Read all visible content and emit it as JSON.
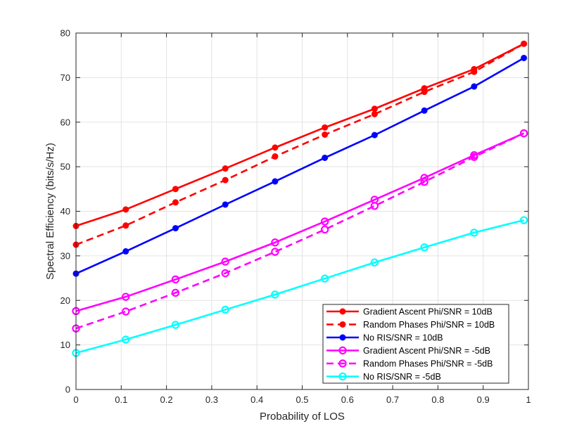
{
  "chart_data": {
    "type": "line",
    "title": "",
    "xlabel": "Probability of LOS",
    "ylabel": "Spectral Efficiency (bits/s/Hz)",
    "xlim": [
      0,
      1
    ],
    "ylim": [
      0,
      80
    ],
    "xticks": [
      "0",
      "0.1",
      "0.2",
      "0.3",
      "0.4",
      "0.5",
      "0.6",
      "0.7",
      "0.8",
      "0.9",
      "1"
    ],
    "yticks": [
      "0",
      "10",
      "20",
      "30",
      "40",
      "50",
      "60",
      "70",
      "80"
    ],
    "grid": true,
    "legend_position": "bottom-right",
    "x": [
      0,
      0.11,
      0.22,
      0.33,
      0.44,
      0.55,
      0.66,
      0.77,
      0.88,
      0.99
    ],
    "series": [
      {
        "name": "Gradient Ascent Phi/SNR = 10dB",
        "color": "#ff0000",
        "dash": false,
        "marker": "filled",
        "values": [
          36.7,
          40.4,
          45.0,
          49.6,
          54.3,
          58.8,
          63.0,
          67.6,
          71.9,
          77.6
        ]
      },
      {
        "name": "Random Phases Phi/SNR = 10dB",
        "color": "#ff0000",
        "dash": true,
        "marker": "filled",
        "values": [
          32.5,
          36.8,
          42.0,
          47.0,
          52.3,
          57.2,
          61.8,
          66.8,
          71.3,
          77.6
        ]
      },
      {
        "name": "No RIS/SNR = 10dB",
        "color": "#0000ff",
        "dash": false,
        "marker": "filled",
        "values": [
          26.0,
          31.0,
          36.2,
          41.5,
          46.7,
          52.0,
          57.1,
          62.6,
          68.0,
          74.4
        ]
      },
      {
        "name": "Gradient Ascent Phi/SNR = -5dB",
        "color": "#ff00ff",
        "dash": false,
        "marker": "open",
        "values": [
          17.6,
          20.8,
          24.7,
          28.7,
          33.0,
          37.7,
          42.6,
          47.5,
          52.6,
          57.5
        ]
      },
      {
        "name": "Random Phases Phi/SNR = -5dB",
        "color": "#ff00ff",
        "dash": true,
        "marker": "open",
        "values": [
          13.7,
          17.5,
          21.7,
          26.1,
          30.9,
          35.9,
          41.2,
          46.6,
          52.2,
          57.5
        ]
      },
      {
        "name": "No RIS/SNR = -5dB",
        "color": "#00ffff",
        "dash": false,
        "marker": "open",
        "values": [
          8.2,
          11.2,
          14.5,
          17.9,
          21.3,
          24.9,
          28.5,
          31.9,
          35.2,
          38.0
        ]
      }
    ]
  }
}
